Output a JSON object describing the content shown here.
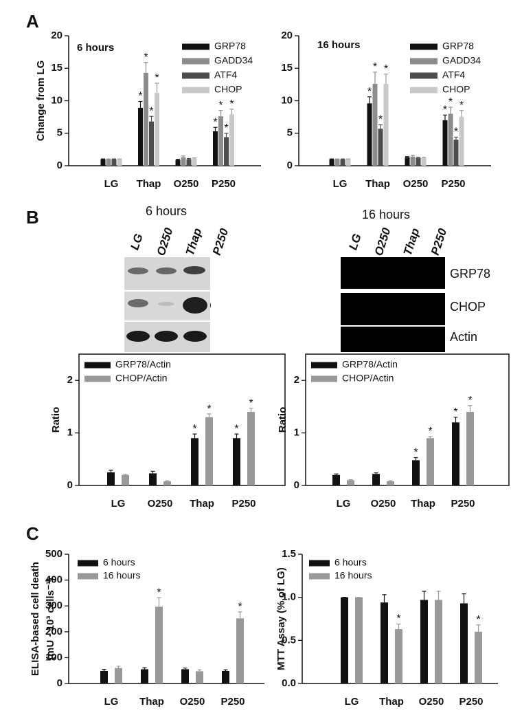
{
  "panels": [
    "A",
    "B",
    "C"
  ],
  "blots": [
    {
      "title": "6 hours",
      "lanes": [
        "LG",
        "O250",
        "Thap",
        "P250"
      ]
    },
    {
      "title": "16 hours",
      "lanes": [
        "LG",
        "O250",
        "Thap",
        "P250"
      ],
      "rows": [
        "GRP78",
        "CHOP",
        "Actin"
      ]
    }
  ],
  "chart_data": [
    {
      "type": "bar",
      "annotation": "6 hours",
      "ylabel": "Change from LG",
      "categories": [
        "LG",
        "Thap",
        "O250",
        "P250"
      ],
      "ylim": [
        0,
        20
      ],
      "yticks": [
        0,
        5,
        10,
        15,
        20
      ],
      "legend": "upper right",
      "series": [
        {
          "name": "GRP78",
          "color": "#111111",
          "values": [
            1,
            8.9,
            0.9,
            5.3
          ],
          "errors": [
            0.05,
            1.0,
            0.1,
            0.6
          ],
          "significance": [
            null,
            "*",
            null,
            "*"
          ]
        },
        {
          "name": "GADD34",
          "color": "#8c8c8c",
          "values": [
            1,
            14.3,
            1.3,
            7.6
          ],
          "errors": [
            0.05,
            1.6,
            0.2,
            0.9
          ],
          "significance": [
            null,
            "*",
            null,
            "*"
          ]
        },
        {
          "name": "ATF4",
          "color": "#4d4d4d",
          "values": [
            1,
            6.8,
            1.0,
            4.4
          ],
          "errors": [
            0.05,
            0.8,
            0.1,
            0.6
          ],
          "significance": [
            null,
            "*",
            null,
            "*"
          ]
        },
        {
          "name": "CHOP",
          "color": "#c8c8c8",
          "values": [
            1,
            11.2,
            1.1,
            7.9
          ],
          "errors": [
            0.05,
            1.5,
            0.1,
            0.8
          ],
          "significance": [
            null,
            "*",
            null,
            "*"
          ]
        }
      ]
    },
    {
      "type": "bar",
      "annotation": "16 hours",
      "categories": [
        "LG",
        "Thap",
        "O250",
        "P250"
      ],
      "ylim": [
        0,
        20
      ],
      "yticks": [
        0,
        5,
        10,
        15,
        20
      ],
      "legend": "upper right",
      "series": [
        {
          "name": "GRP78",
          "color": "#111111",
          "values": [
            1,
            9.6,
            1.3,
            7.0
          ],
          "errors": [
            0.05,
            1.0,
            0.1,
            0.8
          ],
          "significance": [
            null,
            "*",
            null,
            "*"
          ]
        },
        {
          "name": "GADD34",
          "color": "#8c8c8c",
          "values": [
            1,
            12.6,
            1.4,
            8.0
          ],
          "errors": [
            0.05,
            1.8,
            0.2,
            1.0
          ],
          "significance": [
            null,
            "*",
            null,
            "*"
          ]
        },
        {
          "name": "ATF4",
          "color": "#4d4d4d",
          "values": [
            1,
            5.7,
            1.2,
            4.0
          ],
          "errors": [
            0.05,
            0.6,
            0.1,
            0.4
          ],
          "significance": [
            null,
            "*",
            null,
            "*"
          ]
        },
        {
          "name": "CHOP",
          "color": "#c8c8c8",
          "values": [
            1,
            12.6,
            1.2,
            7.5
          ],
          "errors": [
            0.05,
            1.5,
            0.1,
            1.0
          ],
          "significance": [
            null,
            "*",
            null,
            "*"
          ]
        }
      ]
    },
    {
      "type": "bar",
      "ylabel": "Ratio",
      "frame": true,
      "categories": [
        "LG",
        "O250",
        "Thap",
        "P250"
      ],
      "ylim": [
        0,
        2.5
      ],
      "yticks": [
        0,
        1,
        2
      ],
      "legend": "upper left",
      "series": [
        {
          "name": "GRP78/Actin",
          "color": "#111111",
          "values": [
            0.25,
            0.23,
            0.9,
            0.9
          ],
          "errors": [
            0.04,
            0.04,
            0.08,
            0.08
          ],
          "significance": [
            null,
            null,
            "*",
            "*"
          ]
        },
        {
          "name": "CHOP/Actin",
          "color": "#999999",
          "values": [
            0.2,
            0.08,
            1.3,
            1.4
          ],
          "errors": [
            0.01,
            0.01,
            0.06,
            0.07
          ],
          "significance": [
            null,
            null,
            "*",
            "*"
          ]
        }
      ]
    },
    {
      "type": "bar",
      "ylabel": "Ratio",
      "frame": true,
      "categories": [
        "LG",
        "O250",
        "Thap",
        "P250"
      ],
      "ylim": [
        0,
        2.5
      ],
      "yticks": [
        0,
        1,
        2
      ],
      "legend": "upper left",
      "series": [
        {
          "name": "GRP78/Actin",
          "color": "#111111",
          "values": [
            0.2,
            0.22,
            0.48,
            1.2
          ],
          "errors": [
            0.02,
            0.02,
            0.05,
            0.1
          ],
          "significance": [
            null,
            null,
            "*",
            "*"
          ]
        },
        {
          "name": "CHOP/Actin",
          "color": "#999999",
          "values": [
            0.1,
            0.08,
            0.9,
            1.4
          ],
          "errors": [
            0.01,
            0.01,
            0.03,
            0.12
          ],
          "significance": [
            null,
            null,
            "*",
            "*"
          ]
        }
      ]
    },
    {
      "type": "bar",
      "ylabel": [
        "ELISA-based cell death",
        "(mU · 10³ cells⁻¹)"
      ],
      "categories": [
        "LG",
        "Thap",
        "O250",
        "P250"
      ],
      "ylim": [
        0,
        500
      ],
      "yticks": [
        0,
        100,
        200,
        300,
        400,
        500
      ],
      "legend": "upper left",
      "series": [
        {
          "name": "6 hours",
          "color": "#111111",
          "values": [
            48,
            55,
            55,
            48
          ],
          "errors": [
            6,
            6,
            5,
            5
          ],
          "significance": [
            null,
            null,
            null,
            null
          ]
        },
        {
          "name": "16 hours",
          "color": "#999999",
          "values": [
            60,
            297,
            47,
            252
          ],
          "errors": [
            7,
            35,
            6,
            25
          ],
          "significance": [
            null,
            "*",
            null,
            "*"
          ]
        }
      ]
    },
    {
      "type": "bar",
      "ylabel": "MTT Assay (% of LG)",
      "categories": [
        "LG",
        "Thap",
        "O250",
        "P250"
      ],
      "ylim": [
        0,
        1.5
      ],
      "yticks": [
        {
          "value": 0,
          "label": "0.0"
        },
        0.5,
        {
          "value": 1,
          "label": "1.0"
        },
        {
          "value": 1.5,
          "label": "1.5"
        }
      ],
      "legend": "upper left",
      "series": [
        {
          "name": "6 hours",
          "color": "#111111",
          "values": [
            1.0,
            0.94,
            0.97,
            0.93
          ],
          "errors": [
            0,
            0.09,
            0.1,
            0.11
          ],
          "significance": [
            null,
            null,
            null,
            null
          ]
        },
        {
          "name": "16 hours",
          "color": "#999999",
          "values": [
            1.0,
            0.63,
            0.97,
            0.6
          ],
          "errors": [
            0,
            0.06,
            0.1,
            0.08
          ],
          "significance": [
            null,
            "*",
            null,
            "*"
          ]
        }
      ]
    }
  ]
}
